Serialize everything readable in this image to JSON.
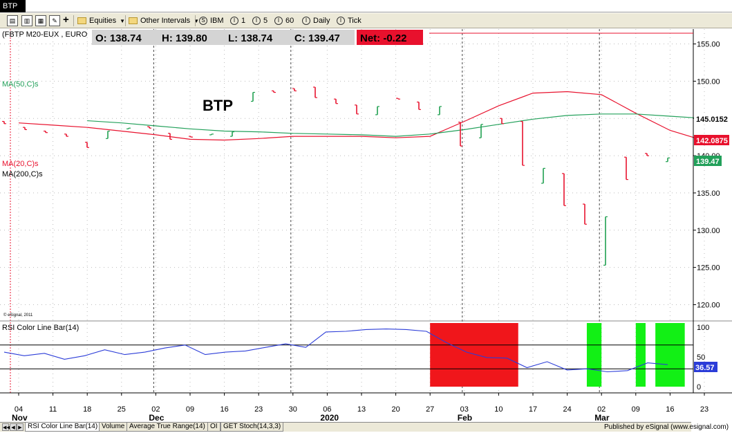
{
  "window": {
    "title": "BTP"
  },
  "toolbar": {
    "equities_label": "Equities",
    "intervals_label": "Other Intervals",
    "symbol_label": "IBM",
    "int1_label": "1",
    "int5_label": "5",
    "int60_label": "60",
    "daily_label": "Daily",
    "tick_label": "Tick",
    "icon_s": "S",
    "icon_i": "I"
  },
  "chart": {
    "symbol_label": "(FBTP M20-EUX , EURO",
    "ohlc": {
      "open_label": "O: 138.74",
      "high_label": "H: 139.80",
      "low_label": "L: 138.74",
      "close_label": "C: 139.47",
      "net_label": "Net: -0.22"
    },
    "title": "BTP",
    "ma50_label": "MA(50,C)s",
    "ma20_label": "MA(20,C)s",
    "ma200_label": "MA(200,C)s",
    "copyright": "© eSignal, 2011",
    "price_labels": [
      "155.00",
      "150.00",
      "145.00",
      "140.00",
      "135.00",
      "130.00",
      "125.00",
      "120.00"
    ],
    "badges": {
      "ma50": "145.0152",
      "ma20": "142.0875",
      "last": "139.47"
    },
    "colors": {
      "ma20": "#e8112d",
      "ma50": "#22a05a",
      "up": "#1fa050",
      "down": "#e8112d",
      "rsi_line": "#2b3cd8",
      "hi_zone": "#f0161b",
      "lo_zone": "#12f015"
    }
  },
  "rsi": {
    "label": "RSI Color Line Bar(14)",
    "axis_labels": [
      "100",
      "50",
      "0"
    ],
    "badge": "36.57",
    "ylim": [
      0,
      100
    ],
    "levels": [
      70,
      30
    ]
  },
  "xaxis": {
    "day_labels": [
      "04",
      "11",
      "18",
      "25",
      "02",
      "09",
      "16",
      "23",
      "30",
      "06",
      "13",
      "20",
      "27",
      "03",
      "10",
      "17",
      "24",
      "02",
      "09",
      "16",
      "23"
    ],
    "month_labels": [
      "Nov",
      "Dec",
      "2020",
      "Feb",
      "Mar"
    ]
  },
  "tabs": [
    "RSI Color Line Bar(14)",
    "Volume",
    "Average True Range(14)",
    "OI",
    "GET Stoch(14,3,3)"
  ],
  "footer": "Published by eSignal (www.esignal.com)",
  "chart_data": {
    "type": "line",
    "ylim": [
      118,
      157
    ],
    "x_dates": [
      "2019-11-04",
      "2019-11-11",
      "2019-11-18",
      "2019-11-25",
      "2019-12-02",
      "2019-12-09",
      "2019-12-16",
      "2019-12-23",
      "2019-12-30",
      "2020-01-06",
      "2020-01-13",
      "2020-01-20",
      "2020-01-27",
      "2020-02-03",
      "2020-02-10",
      "2020-02-17",
      "2020-02-24",
      "2020-03-02",
      "2020-03-09",
      "2020-03-16",
      "2020-03-23"
    ],
    "series": [
      {
        "name": "MA(20,C)s",
        "values": [
          144.4,
          144.1,
          143.8,
          143.3,
          142.8,
          142.2,
          142.1,
          142.3,
          142.6,
          142.6,
          142.6,
          142.4,
          142.6,
          144.6,
          146.7,
          148.4,
          148.6,
          148.2,
          145.7,
          143.4,
          142.0
        ]
      },
      {
        "name": "MA(50,C)s",
        "values": [
          null,
          null,
          144.7,
          144.4,
          144.0,
          143.6,
          143.3,
          143.2,
          143.0,
          142.9,
          142.8,
          142.6,
          142.9,
          143.5,
          144.2,
          144.9,
          145.4,
          145.6,
          145.6,
          145.3,
          145.0
        ]
      }
    ],
    "ohlc_bars": [
      [
        144.6,
        144.3
      ],
      [
        143.8,
        143.5
      ],
      [
        143.3,
        143.1
      ],
      [
        142.9,
        142.6
      ],
      [
        141.8,
        141.1
      ],
      [
        142.3,
        143.3
      ],
      [
        143.6,
        143.7
      ],
      [
        143.9,
        143.7
      ],
      [
        143.0,
        142.2
      ],
      [
        142.6,
        142.5
      ],
      [
        142.8,
        142.9
      ],
      [
        142.6,
        143.2
      ],
      [
        147.3,
        148.5
      ],
      [
        148.7,
        148.5
      ],
      [
        149.0,
        148.7
      ],
      [
        149.2,
        147.8
      ],
      [
        147.6,
        147.0
      ],
      [
        146.8,
        145.6
      ],
      [
        145.5,
        146.6
      ],
      [
        147.7,
        147.6
      ],
      [
        147.2,
        146.2
      ],
      [
        145.5,
        146.6
      ],
      [
        144.5,
        141.3
      ],
      [
        142.4,
        144.2
      ],
      [
        145.0,
        144.3
      ],
      [
        144.6,
        138.7
      ],
      [
        136.3,
        138.3
      ],
      [
        137.6,
        133.3
      ],
      [
        133.5,
        130.8
      ],
      [
        125.3,
        131.8
      ],
      [
        139.8,
        136.8
      ],
      [
        140.3,
        140.0
      ],
      [
        139.2,
        139.7
      ]
    ],
    "rsi": [
      58,
      52,
      56,
      46,
      52,
      62,
      54,
      58,
      65,
      70,
      54,
      58,
      60,
      66,
      72,
      66,
      92,
      93,
      96,
      97,
      96,
      93,
      74,
      58,
      49,
      48,
      32,
      42,
      28,
      30,
      25,
      27,
      40,
      37
    ],
    "rsi_zones": [
      {
        "start": "2020-01-27",
        "end": "2020-02-14",
        "level": "high"
      },
      {
        "start": "2020-02-28",
        "end": "2020-03-02",
        "level": "low"
      },
      {
        "start": "2020-03-09",
        "end": "2020-03-11",
        "level": "low"
      },
      {
        "start": "2020-03-13",
        "end": "2020-03-19",
        "level": "low"
      }
    ]
  }
}
